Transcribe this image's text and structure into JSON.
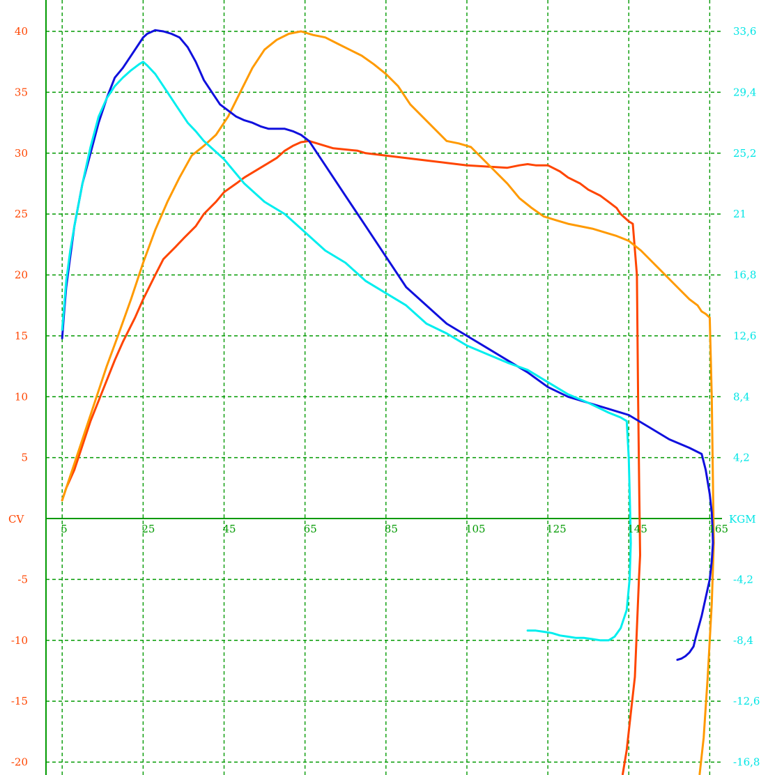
{
  "chart_data": {
    "type": "line",
    "grid": true,
    "x_ticks": [
      "5",
      "25",
      "45",
      "65",
      "85",
      "105",
      "125",
      "145",
      "165"
    ],
    "xlim": [
      1,
      167
    ],
    "left_axis": {
      "unit_label": "CV",
      "ylim": [
        -20,
        41
      ],
      "tick_values": [
        40,
        35,
        30,
        25,
        20,
        15,
        10,
        5,
        -5,
        -10,
        -15,
        -20
      ],
      "tick_labels": [
        "40",
        "35",
        "30",
        "25",
        "20",
        "15",
        "10",
        "5",
        "-5",
        "-10",
        "-15",
        "-20"
      ],
      "color": "#ff4500"
    },
    "right_axis": {
      "unit_label": "KGM",
      "tick_labels": [
        "33,6",
        "29,4",
        "25,2",
        "21",
        "16,8",
        "12,6",
        "8,4",
        "4,2",
        "-4,2",
        "-8,4",
        "-12,6",
        "-16,8"
      ],
      "color": "#00e5e5"
    },
    "axis_color": "#009900",
    "grid_color": "#009900",
    "series": [
      {
        "color": "#ff4500",
        "x": [
          5,
          6,
          8,
          10,
          12,
          15,
          18,
          20,
          23,
          25,
          28,
          30,
          33,
          35,
          38,
          40,
          43,
          45,
          48,
          50,
          53,
          55,
          58,
          60,
          62,
          64,
          66,
          68,
          70,
          72,
          75,
          78,
          80,
          85,
          90,
          95,
          100,
          105,
          110,
          115,
          118,
          120,
          122,
          125,
          128,
          130,
          133,
          135,
          138,
          140,
          142,
          143,
          144,
          145,
          146,
          147,
          147.3,
          147.6,
          147.8,
          147.5,
          147.0,
          146.5,
          145.5,
          144.5,
          143.5
        ],
        "y": [
          1.5,
          2.5,
          4,
          6,
          8,
          10.5,
          13,
          14.5,
          16.5,
          18,
          20,
          21.3,
          22.3,
          23,
          24,
          25,
          26,
          26.8,
          27.5,
          28,
          28.6,
          29,
          29.6,
          30.2,
          30.6,
          30.9,
          31,
          30.8,
          30.6,
          30.4,
          30.3,
          30.2,
          30,
          29.8,
          29.6,
          29.4,
          29.2,
          29,
          28.9,
          28.8,
          29,
          29.1,
          29,
          29,
          28.5,
          28,
          27.5,
          27,
          26.5,
          26,
          25.5,
          25,
          24.7,
          24.4,
          24.2,
          20,
          10,
          2,
          -3,
          -5,
          -9,
          -13,
          -16,
          -19,
          -21
        ]
      },
      {
        "color": "#ff9a00",
        "x": [
          5,
          6,
          8,
          10,
          13,
          16,
          19,
          22,
          25,
          28,
          31,
          34,
          37,
          40,
          43,
          46,
          49,
          52,
          55,
          58,
          61,
          64,
          67,
          70,
          73,
          76,
          79,
          82,
          85,
          88,
          91,
          94,
          97,
          100,
          103,
          106,
          109,
          112,
          115,
          118,
          121,
          124,
          127,
          130,
          133,
          136,
          139,
          142,
          145,
          148,
          151,
          154,
          157,
          160,
          162,
          163,
          164,
          165,
          165.5,
          165.8,
          166,
          165.5,
          164.5,
          163.5,
          162.5
        ],
        "y": [
          1.5,
          2.5,
          4.5,
          6.5,
          9.5,
          12.5,
          15.2,
          18,
          21,
          23.7,
          26,
          28,
          29.8,
          30.6,
          31.5,
          33,
          35,
          37,
          38.5,
          39.3,
          39.8,
          40,
          39.7,
          39.5,
          39,
          38.5,
          38,
          37.3,
          36.5,
          35.5,
          34,
          33,
          32,
          31,
          30.8,
          30.5,
          29.5,
          28.5,
          27.5,
          26.3,
          25.5,
          24.8,
          24.5,
          24.2,
          24,
          23.8,
          23.5,
          23.2,
          22.8,
          22,
          21,
          20,
          19,
          18,
          17.5,
          17,
          16.8,
          16.5,
          10,
          3,
          -2,
          -7,
          -13,
          -18,
          -21
        ]
      },
      {
        "color": "#1010dd",
        "x": [
          5,
          5.5,
          6,
          7,
          8,
          10,
          12,
          14,
          16,
          18,
          20,
          22,
          24,
          25,
          26,
          28,
          30,
          32,
          34,
          36,
          38,
          40,
          42,
          44,
          46,
          48,
          50,
          52,
          54,
          56,
          58,
          60,
          62,
          64,
          66,
          70,
          75,
          80,
          85,
          90,
          95,
          100,
          105,
          110,
          115,
          120,
          125,
          130,
          135,
          140,
          145,
          150,
          155,
          160,
          163,
          164,
          165,
          165.5,
          165.7,
          165.8,
          165.5,
          165,
          164,
          163,
          162,
          161.5,
          161,
          160,
          159,
          158,
          157
        ],
        "y": [
          14.8,
          17,
          19,
          21.5,
          24,
          27.5,
          30,
          32.5,
          34.5,
          36.2,
          37,
          38,
          39,
          39.5,
          39.8,
          40.1,
          40,
          39.8,
          39.5,
          38.7,
          37.5,
          36,
          35,
          34,
          33.5,
          33,
          32.7,
          32.5,
          32.2,
          32,
          32,
          32,
          31.8,
          31.5,
          31,
          29,
          26.5,
          24,
          21.5,
          19,
          17.5,
          16,
          15,
          14,
          13,
          12,
          10.8,
          10,
          9.5,
          9,
          8.5,
          7.5,
          6.5,
          5.8,
          5.3,
          4,
          2,
          0.5,
          -1,
          -2,
          -3.5,
          -5,
          -6.5,
          -8,
          -9.2,
          -9.8,
          -10.5,
          -11,
          -11.3,
          -11.5,
          -11.6
        ]
      },
      {
        "color": "#00eeee",
        "x": [
          5,
          5.5,
          6,
          7,
          8,
          10,
          12,
          14,
          16,
          18,
          20,
          22,
          24,
          25,
          26,
          28,
          30,
          32,
          34,
          36,
          38,
          40,
          45,
          50,
          55,
          60,
          65,
          70,
          75,
          80,
          85,
          90,
          95,
          100,
          105,
          110,
          115,
          120,
          125,
          130,
          135,
          140,
          143,
          144.5,
          145,
          145.3,
          145.5,
          145.2,
          144.5,
          143,
          141.5,
          140,
          138,
          136,
          134,
          132,
          130,
          128,
          126,
          124,
          122,
          120
        ],
        "y": [
          15.5,
          17.5,
          19.5,
          22,
          24,
          27.5,
          30.5,
          33,
          34.5,
          35.5,
          36.2,
          36.8,
          37.3,
          37.5,
          37.2,
          36.5,
          35.5,
          34.5,
          33.5,
          32.5,
          31.8,
          31,
          29.5,
          27.5,
          26,
          25,
          23.5,
          22,
          21,
          19.5,
          18.5,
          17.5,
          16,
          15.2,
          14.2,
          13.5,
          12.8,
          12.2,
          11.2,
          10.2,
          9.5,
          8.7,
          8.3,
          8,
          5,
          1,
          -2,
          -5,
          -7.5,
          -9,
          -9.7,
          -10,
          -10,
          -9.9,
          -9.8,
          -9.8,
          -9.7,
          -9.6,
          -9.4,
          -9.3,
          -9.2,
          -9.2
        ]
      }
    ]
  }
}
